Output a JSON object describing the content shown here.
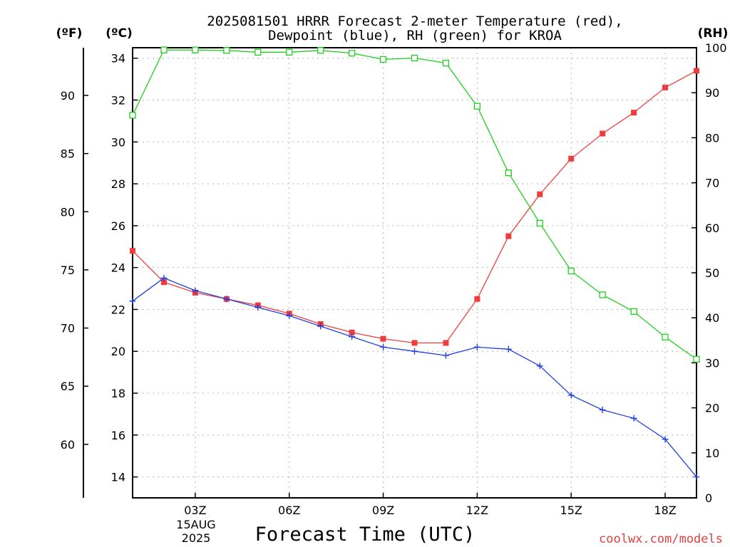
{
  "chart_data": {
    "type": "line",
    "title_lines": [
      "2025081501 HRRR Forecast 2-meter Temperature (red),",
      "Dewpoint (blue), RH (green) for KROA"
    ],
    "xlabel": "Forecast Time (UTC)",
    "x_hours": [
      1,
      2,
      3,
      4,
      5,
      6,
      7,
      8,
      9,
      10,
      11,
      12,
      13,
      14,
      15,
      16,
      17,
      18,
      19
    ],
    "xlim": [
      1,
      19
    ],
    "x_ticks": [
      {
        "hour": 3,
        "label": "03Z"
      },
      {
        "hour": 6,
        "label": "06Z"
      },
      {
        "hour": 9,
        "label": "09Z"
      },
      {
        "hour": 12,
        "label": "12Z"
      },
      {
        "hour": 15,
        "label": "15Z"
      },
      {
        "hour": 18,
        "label": "18Z"
      }
    ],
    "date_label_lines": [
      "15AUG",
      "2025"
    ],
    "left_axis_f": {
      "label": "(ºF)",
      "lim": [
        55.4,
        94.1
      ],
      "ticks": [
        60,
        65,
        70,
        75,
        80,
        85,
        90
      ]
    },
    "left_axis_c": {
      "label": "(ºC)",
      "lim": [
        13,
        34.5
      ],
      "ticks": [
        14,
        16,
        18,
        20,
        22,
        24,
        26,
        28,
        30,
        32,
        34
      ]
    },
    "right_axis_rh": {
      "label": "(RH)",
      "lim": [
        0,
        100
      ],
      "ticks": [
        0,
        10,
        20,
        30,
        40,
        50,
        60,
        70,
        80,
        90,
        100
      ]
    },
    "grid": true,
    "series": [
      {
        "name": "Temperature",
        "axis": "c",
        "color": "#f03c3c",
        "marker": "square-filled",
        "values": [
          24.8,
          23.3,
          22.8,
          22.5,
          22.2,
          21.8,
          21.3,
          20.9,
          20.6,
          20.4,
          20.4,
          22.5,
          25.5,
          27.5,
          29.2,
          30.4,
          31.4,
          32.6,
          33.4
        ]
      },
      {
        "name": "Dewpoint",
        "axis": "c",
        "color": "#2040e0",
        "marker": "plus",
        "values": [
          22.4,
          23.5,
          22.9,
          22.5,
          22.1,
          21.7,
          21.2,
          20.7,
          20.2,
          20.0,
          19.8,
          20.2,
          20.1,
          19.3,
          17.9,
          17.2,
          16.8,
          15.8,
          14.0
        ]
      },
      {
        "name": "RH",
        "axis": "rh",
        "color": "#20d020",
        "marker": "square-open",
        "values": [
          85,
          99.5,
          99.5,
          99.4,
          99.0,
          99.0,
          99.4,
          98.8,
          97.4,
          97.7,
          96.6,
          87.0,
          72.2,
          61.0,
          50.4,
          45.1,
          41.4,
          35.7,
          30.8
        ]
      }
    ]
  },
  "credit": "coolwx.com/models"
}
